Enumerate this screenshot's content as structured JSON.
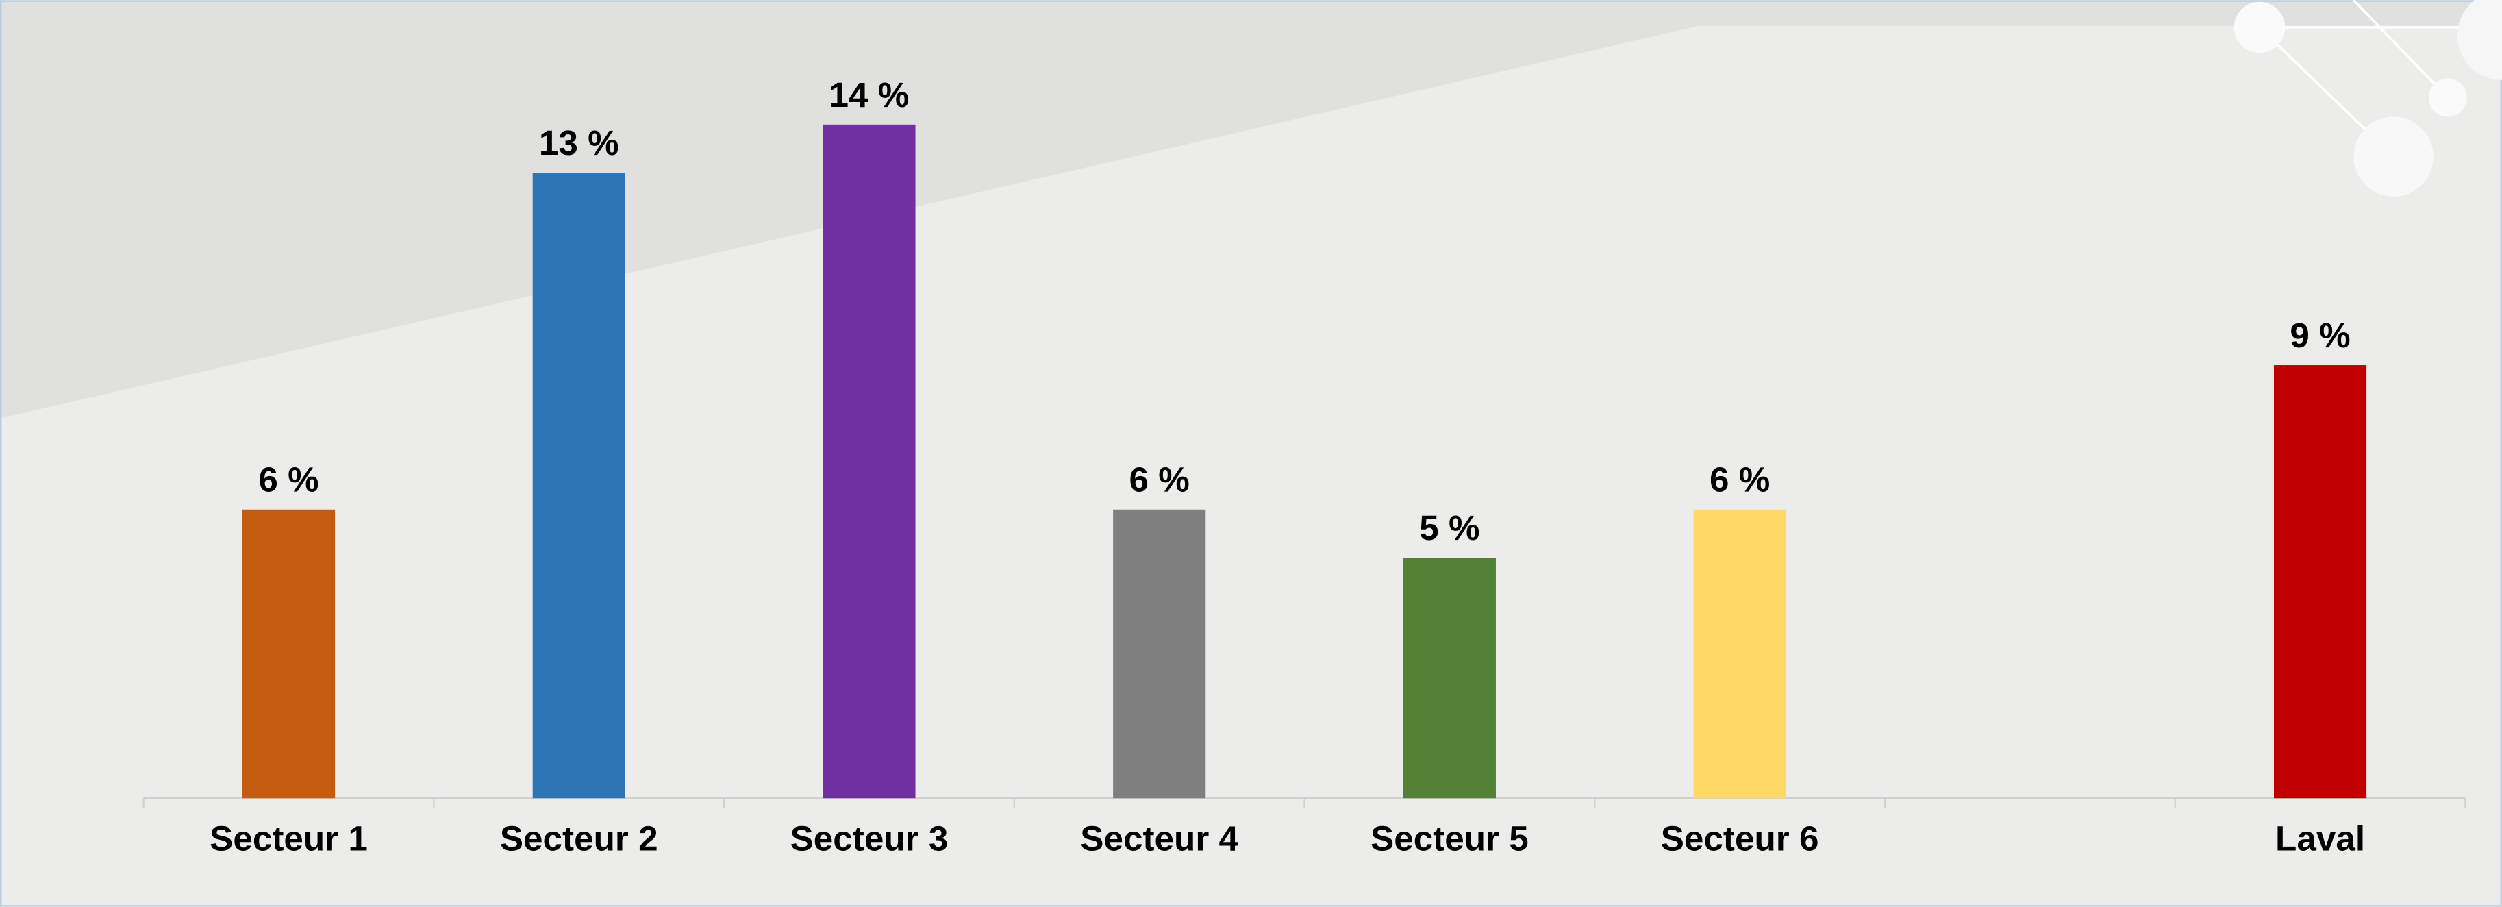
{
  "chart_data": {
    "type": "bar",
    "categories": [
      "Secteur 1",
      "Secteur 2",
      "Secteur 3",
      "Secteur 4",
      "Secteur 5",
      "Secteur 6",
      null,
      "Laval"
    ],
    "values": [
      6,
      13,
      14,
      6,
      5,
      6,
      null,
      9
    ],
    "value_labels": [
      "6 %",
      "13 %",
      "14 %",
      "6 %",
      "5 %",
      "6 %",
      null,
      "9 %"
    ],
    "colors": [
      "#c55a11",
      "#2e75b6",
      "#7030a0",
      "#7f7f7f",
      "#538135",
      "#ffd966",
      null,
      "#c00000"
    ]
  }
}
